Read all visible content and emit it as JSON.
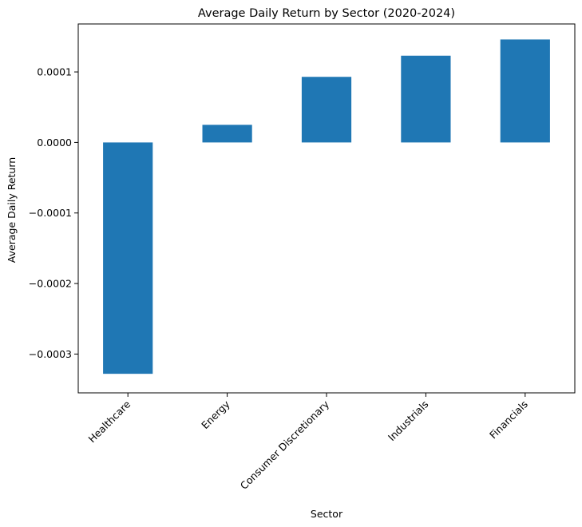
{
  "chart_data": {
    "type": "bar",
    "title": "Average Daily Return by Sector (2020-2024)",
    "xlabel": "Sector",
    "ylabel": "Average Daily Return",
    "categories": [
      "Healthcare",
      "Energy",
      "Consumer Discretionary",
      "Industrials",
      "Financials"
    ],
    "values": [
      -0.000328,
      2.5e-05,
      9.3e-05,
      0.000123,
      0.000146
    ],
    "ylim": [
      -0.000355,
      0.000168
    ],
    "yticks": [
      -0.0003,
      -0.0002,
      -0.0001,
      0.0,
      0.0001
    ],
    "ytick_labels": [
      "−0.0003",
      "−0.0002",
      "−0.0001",
      "0.0000",
      "0.0001"
    ],
    "x_tick_rotation": 45,
    "grid": false,
    "legend": "none",
    "bar_color": "#1f77b4"
  }
}
